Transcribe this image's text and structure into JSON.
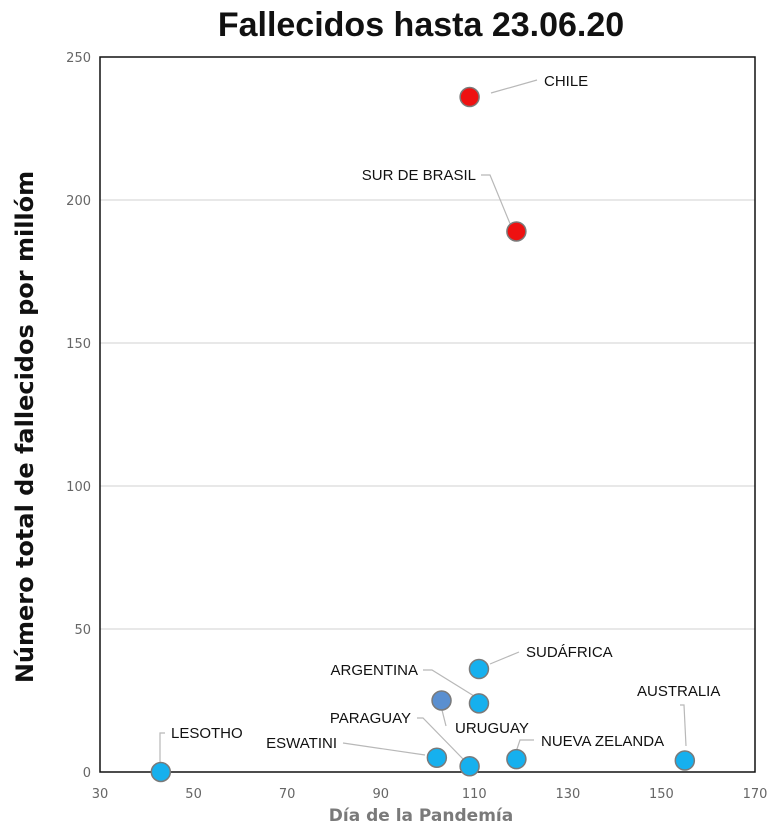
{
  "chart_data": {
    "type": "scatter",
    "title": "Fallecidos hasta 23.06.20",
    "xlabel": "Día de la Pandemía",
    "ylabel": "Número total de fallecidos por  millóm",
    "xlim": [
      30,
      170
    ],
    "ylim": [
      0,
      250
    ],
    "xticks": [
      30,
      50,
      70,
      90,
      110,
      130,
      150,
      170
    ],
    "yticks": [
      0,
      50,
      100,
      150,
      200,
      250
    ],
    "grid": "horizontal",
    "colors": {
      "red": "#ee1111",
      "blue": "#16b0ee",
      "steel": "#5a8fd0",
      "outline": "#7a7a7a"
    },
    "points": [
      {
        "label": "CHILE",
        "x": 109,
        "y": 236,
        "color": "red"
      },
      {
        "label": "SUR DE BRASIL",
        "x": 119,
        "y": 189,
        "color": "red"
      },
      {
        "label": "SUDÁFRICA",
        "x": 111,
        "y": 36,
        "color": "blue"
      },
      {
        "label": "ARGENTINA",
        "x": 111,
        "y": 24,
        "color": "blue"
      },
      {
        "label": "URUGUAY",
        "x": 103,
        "y": 25,
        "color": "steel"
      },
      {
        "label": "PARAGUAY",
        "x": 109,
        "y": 2,
        "color": "blue"
      },
      {
        "label": "ESWATINI",
        "x": 102,
        "y": 5,
        "color": "blue"
      },
      {
        "label": "NUEVA ZELANDA",
        "x": 119,
        "y": 4.5,
        "color": "blue"
      },
      {
        "label": "AUSTRALIA",
        "x": 155,
        "y": 4,
        "color": "blue"
      },
      {
        "label": "LESOTHO",
        "x": 43,
        "y": 0,
        "color": "blue"
      }
    ]
  }
}
